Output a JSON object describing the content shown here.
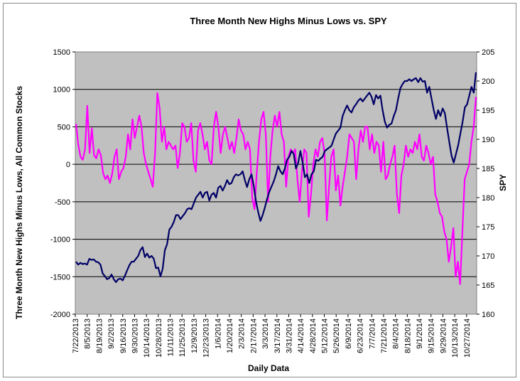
{
  "chart_data": {
    "type": "line",
    "title": "Three Month New Highs Minus Lows vs. SPY",
    "xlabel": "Daily Data",
    "ylabel_left": "Three Month New Highs Minus Lows, All Common Stocks",
    "ylabel_right": "SPY",
    "ylim_left": [
      -2000,
      1500
    ],
    "ylim_right": [
      160,
      205
    ],
    "yticks_left": [
      "1500",
      "1000",
      "500",
      "0",
      "-500",
      "-1000",
      "-1500",
      "-2000"
    ],
    "yticks_right": [
      "205",
      "200",
      "195",
      "190",
      "185",
      "180",
      "175",
      "170",
      "165",
      "160"
    ],
    "x_tick_labels": [
      "7/22/2013",
      "8/5/2013",
      "8/19/2013",
      "9/2/2013",
      "9/16/2013",
      "9/30/2013",
      "10/14/2013",
      "10/28/2013",
      "11/11/2013",
      "11/25/2013",
      "12/9/2013",
      "12/23/2013",
      "1/6/2014",
      "1/20/2014",
      "2/3/2014",
      "2/17/2014",
      "3/3/2014",
      "3/17/2014",
      "3/31/2014",
      "4/14/2014",
      "4/28/2014",
      "5/12/2014",
      "5/26/2014",
      "6/9/2014",
      "6/23/2014",
      "7/7/2014",
      "7/21/2014",
      "8/4/2014",
      "8/18/2014",
      "9/1/2014",
      "9/15/2014",
      "9/29/2014",
      "10/13/2014",
      "10/27/2014"
    ],
    "grid": true,
    "series": [
      {
        "axis": "left",
        "color": "#ff00ff",
        "values": [
          540,
          260,
          100,
          60,
          200,
          780,
          150,
          480,
          120,
          80,
          200,
          120,
          -120,
          -200,
          -150,
          -250,
          -130,
          100,
          200,
          -200,
          -100,
          -50,
          100,
          400,
          200,
          600,
          350,
          500,
          650,
          500,
          150,
          0,
          -100,
          -200,
          -300,
          150,
          950,
          750,
          300,
          500,
          200,
          300,
          250,
          200,
          250,
          -50,
          150,
          550,
          500,
          300,
          350,
          550,
          50,
          -100,
          450,
          550,
          400,
          200,
          300,
          50,
          0,
          500,
          700,
          500,
          150,
          400,
          500,
          350,
          200,
          300,
          150,
          350,
          600,
          450,
          400,
          200,
          300,
          200,
          -450,
          -600,
          -100,
          300,
          600,
          700,
          400,
          -500,
          100,
          450,
          650,
          500,
          700,
          400,
          300,
          -300,
          100,
          200,
          150,
          200,
          -200,
          -500,
          -100,
          200,
          150,
          -700,
          -400,
          0,
          200,
          100,
          300,
          350,
          150,
          -750,
          -300,
          100,
          200,
          -350,
          -150,
          -550,
          -300,
          -100,
          100,
          400,
          350,
          300,
          -200,
          200,
          450,
          300,
          500,
          500,
          200,
          400,
          150,
          300,
          250,
          -100,
          300,
          -200,
          -150,
          0,
          100,
          250,
          -400,
          -650,
          -150,
          0,
          250,
          100,
          200,
          150,
          300,
          200,
          400,
          100,
          50,
          250,
          150,
          0,
          100,
          -400,
          -500,
          -650,
          -700,
          -900,
          -1000,
          -1300,
          -1100,
          -850,
          -1500,
          -1300,
          -1600,
          -900,
          -200,
          -100,
          0,
          300,
          500,
          900
        ]
      },
      {
        "axis": "right",
        "color": "#000066",
        "values": [
          169,
          168.5,
          168.8,
          168.6,
          168.7,
          168.5,
          169.5,
          169.3,
          169.4,
          169,
          168.9,
          168.5,
          167,
          166.5,
          166,
          166.2,
          166.8,
          166,
          165.5,
          166,
          166.1,
          165.8,
          166.6,
          167.5,
          168.4,
          169,
          169,
          169.5,
          170,
          171,
          171.5,
          169.8,
          170.4,
          169.7,
          170,
          169.5,
          167.9,
          168,
          166.5,
          167.8,
          171,
          172,
          174.5,
          175,
          175.8,
          177,
          177,
          176.3,
          176.8,
          177.3,
          178,
          178.2,
          178,
          179,
          180,
          180.5,
          181,
          180,
          180.8,
          181,
          179.5,
          180.5,
          180.8,
          180,
          181.7,
          182,
          181.2,
          182,
          183,
          182.3,
          182.5,
          183.5,
          184,
          183.8,
          184,
          184.5,
          183,
          181.8,
          183.2,
          184,
          182,
          179.3,
          177.5,
          176,
          177,
          178.3,
          179.8,
          181,
          181.9,
          182.8,
          184,
          185.4,
          184.5,
          184,
          185,
          186.5,
          187,
          188,
          187.5,
          185,
          186,
          188,
          186,
          183.5,
          184,
          182.5,
          184,
          184.5,
          186.5,
          186.3,
          186.7,
          187,
          188,
          188.3,
          188.6,
          188.9,
          190,
          191,
          191.5,
          192,
          194,
          195,
          195.8,
          195,
          194.6,
          195.5,
          196,
          196.6,
          197,
          196.5,
          197,
          197.5,
          198,
          197.3,
          196,
          197.6,
          197,
          197.5,
          195,
          193,
          192,
          192.5,
          192.7,
          194,
          195,
          197,
          198.8,
          199.5,
          200,
          200,
          200.3,
          200,
          200.3,
          200.5,
          199.8,
          200.5,
          199.9,
          200,
          198,
          199,
          197,
          195,
          193.5,
          195,
          194,
          195.3,
          194.5,
          192,
          189.5,
          187.2,
          186,
          187.5,
          189,
          191,
          193,
          195.5,
          196,
          197.5,
          199,
          198,
          201.5
        ]
      }
    ]
  }
}
